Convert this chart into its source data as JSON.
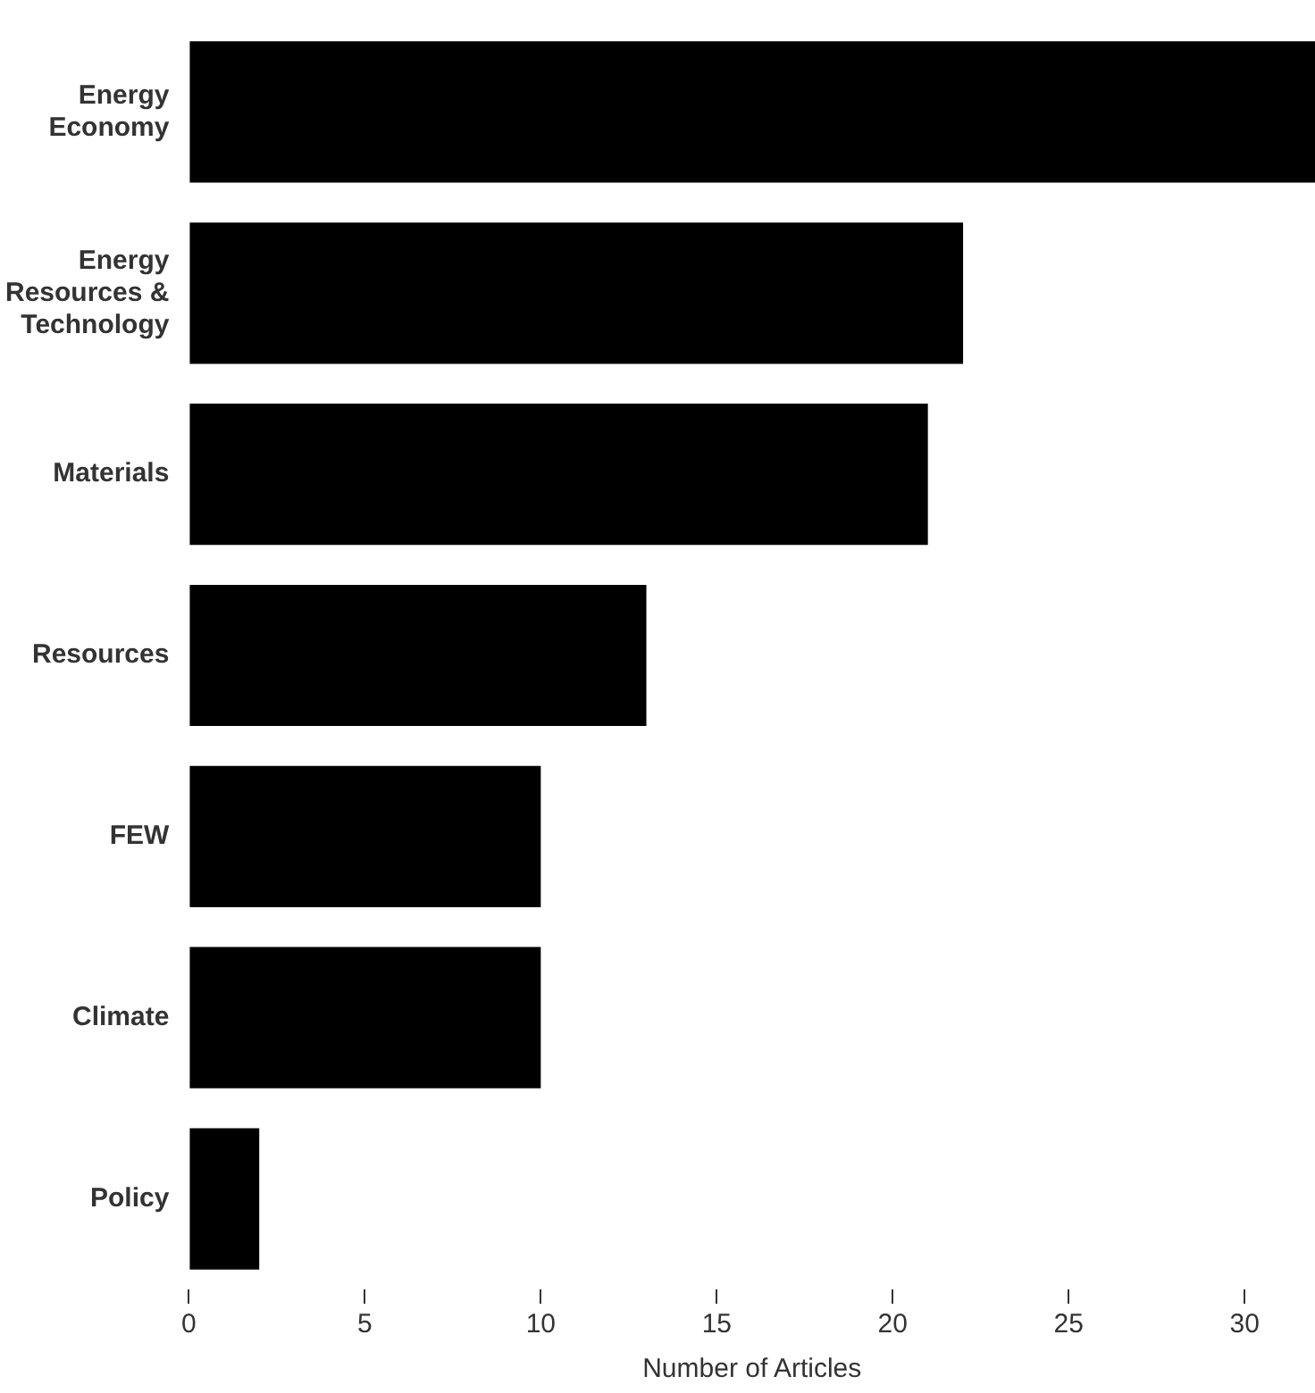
{
  "chart_data": {
    "type": "bar",
    "orientation": "horizontal",
    "categories": [
      "Energy Economy",
      "Energy Resources & Technology",
      "Materials",
      "Resources",
      "FEW",
      "Climate",
      "Policy"
    ],
    "values": [
      32,
      22,
      21,
      13,
      10,
      10,
      2
    ],
    "color": "#000000",
    "xlabel": "Number of Articles",
    "xlim": [
      0,
      32
    ],
    "xticks": [
      0,
      5,
      10,
      15,
      20,
      25,
      30
    ],
    "grid": false,
    "legend": false
  }
}
